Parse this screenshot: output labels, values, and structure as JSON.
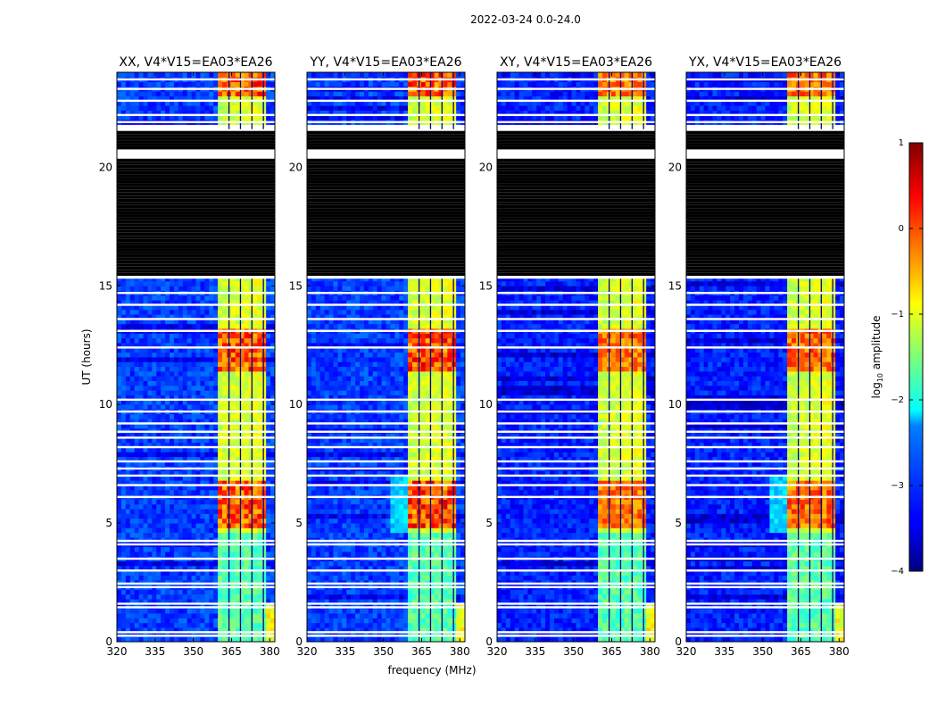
{
  "suptitle": "2022-03-24 0.0-24.0",
  "chart_data": {
    "type": "heatmap",
    "ylabel": "UT (hours)",
    "xlabel": "frequency (MHz)",
    "xlim": [
      320,
      382
    ],
    "ylim": [
      0,
      24
    ],
    "x_ticks": [
      "320",
      "335",
      "350",
      "365",
      "380"
    ],
    "x_tick_values": [
      320,
      335,
      350,
      365,
      380
    ],
    "y_ticks": [
      "0",
      "5",
      "10",
      "15",
      "20"
    ],
    "y_tick_values": [
      0,
      5,
      10,
      15,
      20
    ],
    "colorbar": {
      "label_main": "log",
      "label_sub": "10",
      "label_tail": " amplitude",
      "range": [
        -4,
        1
      ],
      "ticks": [
        "1",
        "0",
        "−1",
        "−2",
        "−3",
        "−4"
      ],
      "tick_values": [
        1,
        0,
        -1,
        -2,
        -3,
        -4
      ],
      "colormap": "jet"
    },
    "rfi_band_mhz": [
      359.5,
      378.5
    ],
    "rfi_channel_edges_mhz": [
      364,
      368.5,
      373,
      377.5
    ],
    "flagged_time_gap_hours": [
      15.3,
      21.6
    ],
    "panels": [
      {
        "title": "XX, V4*V15=EA03*EA26",
        "polarization": "XX",
        "peak_log10_amplitude": 0.5
      },
      {
        "title": "YY, V4*V15=EA03*EA26",
        "polarization": "YY",
        "peak_log10_amplitude": 0.6
      },
      {
        "title": "XY, V4*V15=EA03*EA26",
        "polarization": "XY",
        "peak_log10_amplitude": 0.2
      },
      {
        "title": "YX, V4*V15=EA03*EA26",
        "polarization": "YX",
        "peak_log10_amplitude": 0.3
      }
    ]
  }
}
